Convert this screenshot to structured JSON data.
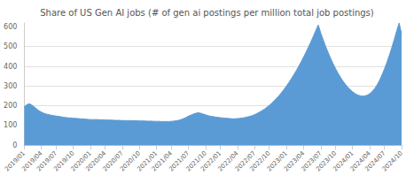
{
  "chart_data": {
    "type": "area",
    "title": "Share of US Gen AI jobs (# of gen ai postings per million total job postings)",
    "categories": [
      "2019/01",
      null,
      null,
      null,
      null,
      null,
      null,
      "2019/04",
      null,
      null,
      null,
      null,
      null,
      "2019/07",
      null,
      null,
      null,
      null,
      null,
      null,
      "2019/10",
      null,
      null,
      null,
      null,
      null,
      null,
      "2020/01",
      null,
      null,
      null,
      null,
      null,
      "2020/04",
      null,
      null,
      null,
      null,
      null,
      null,
      "2020/07",
      null,
      null,
      null,
      null,
      null,
      null,
      "2020/10",
      null,
      null,
      null,
      null,
      null,
      null,
      "2021/01",
      null,
      null,
      null,
      null,
      null,
      "2021/04",
      null,
      null,
      null,
      null,
      null,
      null,
      "2021/07",
      null,
      null,
      null,
      null,
      null,
      null,
      "2021/10",
      null,
      null,
      null,
      null,
      null,
      "2022/01",
      null,
      null,
      null,
      null,
      null,
      null,
      "2022/04",
      null,
      null,
      null,
      null,
      null,
      null,
      "2022/07",
      null,
      null,
      null,
      null,
      null,
      "2022/10",
      null,
      null,
      null,
      null,
      null,
      null,
      "2023/01",
      null,
      null,
      null,
      null,
      null,
      null,
      "2023/04",
      null,
      null,
      null,
      null,
      null,
      null,
      "2023/07",
      null,
      null,
      null,
      null,
      null,
      "2023/10",
      null,
      null,
      null,
      null,
      null,
      null,
      "2024/01",
      null,
      null,
      null,
      null,
      null,
      null,
      "2024/04",
      null,
      null,
      null,
      null,
      null,
      "2024/07",
      null,
      null,
      null,
      null,
      null,
      null,
      "2024/10"
    ],
    "values": [
      195,
      205,
      210,
      205,
      195,
      185,
      175,
      168,
      162,
      158,
      155,
      152,
      150,
      148,
      146,
      144,
      142,
      140,
      139,
      138,
      137,
      136,
      135,
      134,
      133,
      132,
      131,
      130,
      130,
      130,
      130,
      129,
      129,
      128,
      128,
      127,
      127,
      126,
      126,
      126,
      125,
      125,
      125,
      125,
      124,
      124,
      124,
      123,
      123,
      123,
      122,
      122,
      122,
      121,
      121,
      121,
      120,
      120,
      120,
      120,
      121,
      122,
      124,
      126,
      130,
      135,
      140,
      148,
      152,
      158,
      162,
      165,
      162,
      158,
      154,
      150,
      147,
      145,
      143,
      141,
      140,
      138,
      137,
      136,
      135,
      134,
      134,
      135,
      136,
      138,
      140,
      143,
      146,
      150,
      155,
      161,
      168,
      175,
      183,
      192,
      202,
      213,
      225,
      238,
      252,
      267,
      283,
      300,
      318,
      337,
      357,
      378,
      400,
      423,
      447,
      472,
      498,
      525,
      553,
      582,
      610,
      570,
      535,
      502,
      471,
      442,
      415,
      390,
      367,
      346,
      327,
      310,
      295,
      282,
      271,
      262,
      255,
      251,
      249,
      250,
      254,
      261,
      272,
      287,
      306,
      329,
      356,
      387,
      420,
      456,
      495,
      536,
      580,
      620,
      565
    ],
    "color": "#5b9bd5",
    "ylim": [
      0,
      620
    ],
    "yticks": [
      0,
      100,
      200,
      300,
      400,
      500,
      600
    ],
    "grid": true
  }
}
